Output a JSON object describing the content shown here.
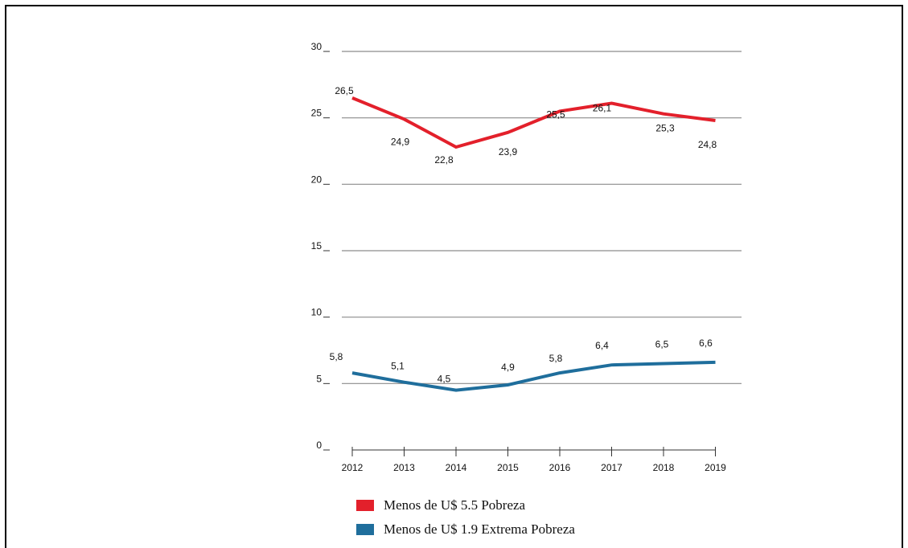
{
  "chart_data": {
    "type": "line",
    "title": "",
    "xlabel": "",
    "ylabel": "",
    "categories": [
      "2012",
      "2013",
      "2014",
      "2015",
      "2016",
      "2017",
      "2018",
      "2019"
    ],
    "ylim": [
      0,
      30
    ],
    "yticks": [
      "0",
      "5",
      "10",
      "15",
      "20",
      "25",
      "30"
    ],
    "grid": true,
    "legend_position": "bottom-left",
    "series": [
      {
        "name": "Menos de U$ 5.5 Pobreza",
        "color": "#e3202b",
        "values": [
          26.5,
          24.9,
          22.8,
          23.9,
          25.5,
          26.1,
          25.3,
          24.8
        ],
        "labels": [
          "26,5",
          "24,9",
          "22,8",
          "23,9",
          "25,5",
          "26,1",
          "25,3",
          "24,8"
        ]
      },
      {
        "name": "Menos de U$ 1.9 Extrema Pobreza",
        "color": "#1f6e9c",
        "values": [
          5.8,
          5.1,
          4.5,
          4.9,
          5.8,
          6.4,
          6.5,
          6.6
        ],
        "labels": [
          "5,8",
          "5,1",
          "4,5",
          "4,9",
          "5,8",
          "6,4",
          "6,5",
          "6,6"
        ]
      }
    ]
  }
}
